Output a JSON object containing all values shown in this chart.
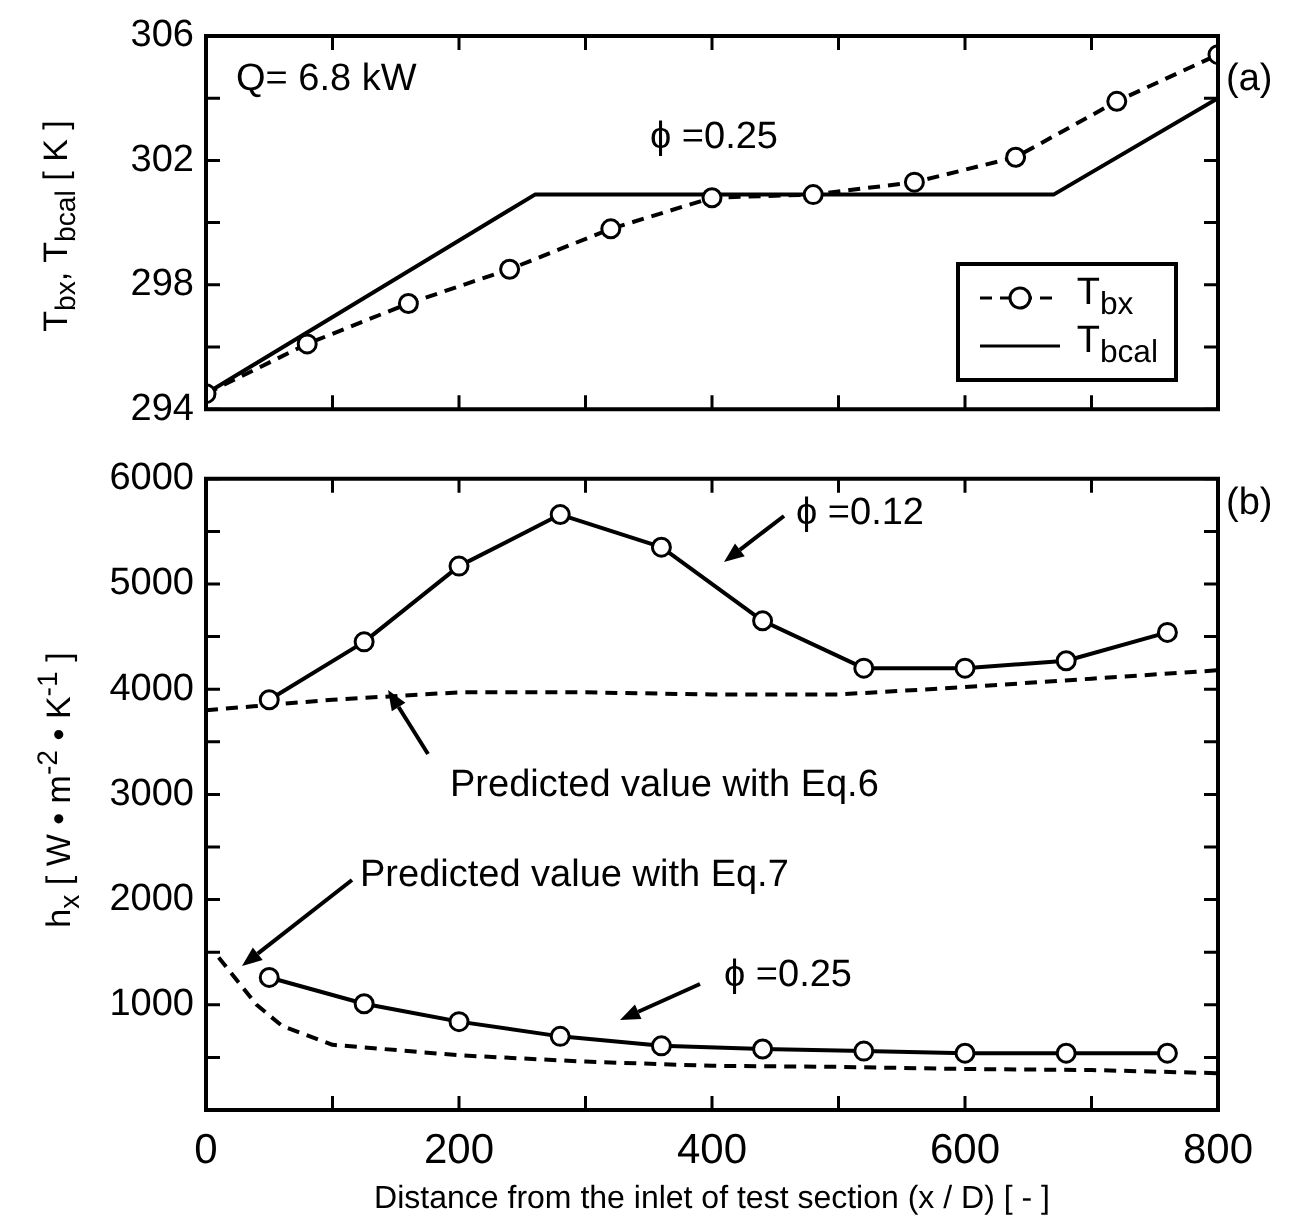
{
  "chart_data": [
    {
      "type": "line",
      "ylabel": "T$_{bx}$, T$_{bcal}$  [ K ]",
      "xlim": [
        0,
        800
      ],
      "ylim": [
        294,
        306
      ],
      "xticks": [
        0,
        {
          "value": 100,
          "label": null
        },
        200,
        {
          "value": 300,
          "label": null
        },
        400,
        {
          "value": 500,
          "label": null
        },
        600,
        {
          "value": 700,
          "label": null
        },
        800
      ],
      "yticks": [
        294,
        {
          "value": 296,
          "label": null
        },
        298,
        {
          "value": 300,
          "label": null
        },
        302,
        {
          "value": 304,
          "label": null
        },
        306
      ],
      "tick_labels": "y",
      "legend": "bottom right",
      "series": [
        {
          "name": "T$_{bx}$",
          "color": "#000000",
          "marker": "circle",
          "line_style": "dashed",
          "x": [
            0,
            80,
            160,
            240,
            320,
            400,
            480,
            560,
            640,
            720,
            800
          ],
          "values": [
            294.5,
            296.1,
            297.4,
            298.5,
            299.8,
            300.8,
            300.9,
            301.3,
            302.1,
            303.9,
            305.4
          ]
        },
        {
          "name": "T$_{bcal}$",
          "color": "#000000",
          "marker": "none",
          "line_style": "solid",
          "x": [
            0,
            260,
            670,
            800
          ],
          "values": [
            294.5,
            300.9,
            300.9,
            304.0
          ]
        }
      ],
      "annotations": [
        "Q= 6.8 kW",
        "ϕ =0.25",
        "(a)"
      ]
    },
    {
      "type": "line",
      "ylabel": "h$_{x}$ [ W • m$^{-2}$ • K$^{-1}$ ]",
      "xlabel": "Distance from the inlet of test section  (x / D)  [ - ]",
      "xlim": [
        0,
        800
      ],
      "ylim": [
        0,
        6000
      ],
      "xticks": [
        0,
        {
          "value": 100,
          "label": null
        },
        200,
        {
          "value": 300,
          "label": null
        },
        400,
        {
          "value": 500,
          "label": null
        },
        600,
        {
          "value": 700,
          "label": null
        },
        800
      ],
      "yticks": [
        {
          "value": 500,
          "label": null
        },
        1000,
        {
          "value": 1500,
          "label": null
        },
        2000,
        {
          "value": 2500,
          "label": null
        },
        3000,
        {
          "value": 3500,
          "label": null
        },
        4000,
        {
          "value": 4500,
          "label": null
        },
        5000,
        {
          "value": 5500,
          "label": null
        },
        6000
      ],
      "series": [
        {
          "color": "#000000",
          "marker": "circle",
          "line_style": "solid",
          "x": [
            50,
            125,
            200,
            280,
            360,
            440,
            520,
            600,
            680,
            760
          ],
          "values": [
            3900,
            4450,
            5170,
            5660,
            5350,
            4650,
            4200,
            4200,
            4270,
            4540
          ]
        },
        {
          "color": "#000000",
          "marker": "none",
          "line_style": "dashed",
          "x": [
            0,
            100,
            200,
            300,
            400,
            500,
            600,
            700,
            800
          ],
          "values": [
            3800,
            3900,
            3970,
            3970,
            3950,
            3950,
            4020,
            4100,
            4180
          ]
        },
        {
          "color": "#000000",
          "marker": "circle",
          "line_style": "solid",
          "x": [
            50,
            125,
            200,
            280,
            360,
            440,
            520,
            600,
            680,
            760
          ],
          "values": [
            1260,
            1010,
            840,
            700,
            610,
            580,
            560,
            540,
            540,
            540
          ]
        },
        {
          "color": "#000000",
          "marker": "none",
          "line_style": "dashed",
          "x": [
            10,
            20,
            40,
            60,
            100,
            200,
            300,
            400,
            500,
            600,
            700,
            800
          ],
          "values": [
            1450,
            1300,
            1000,
            800,
            620,
            520,
            460,
            420,
            410,
            390,
            380,
            350
          ]
        }
      ],
      "annotations": [
        "ϕ =0.12",
        "Predicted value with Eq.6",
        "Predicted value with Eq.7",
        "ϕ =0.25",
        "(b)"
      ]
    }
  ]
}
